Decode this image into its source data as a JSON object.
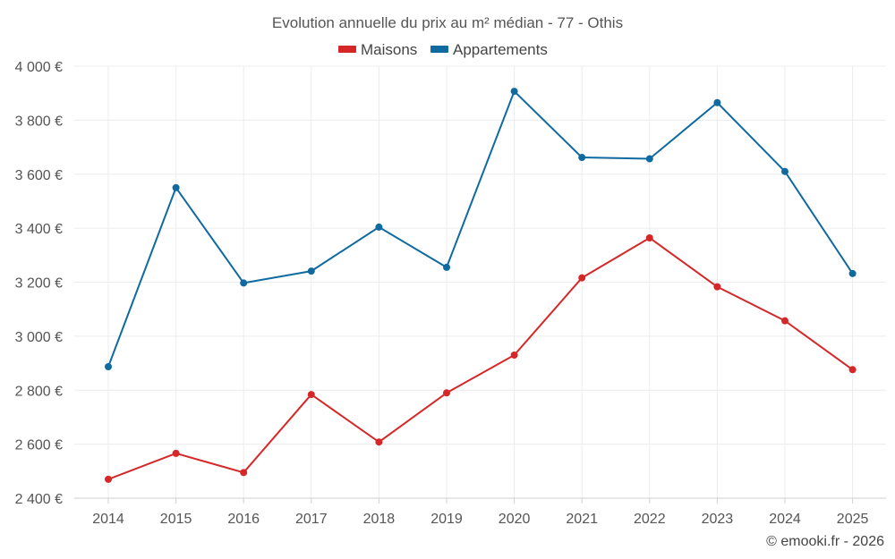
{
  "chart_data": {
    "type": "line",
    "title": "Evolution annuelle du prix au m² médian - 77 - Othis",
    "xlabel": "",
    "ylabel": "",
    "categories": [
      "2014",
      "2015",
      "2016",
      "2017",
      "2018",
      "2019",
      "2020",
      "2021",
      "2022",
      "2023",
      "2024",
      "2025"
    ],
    "series": [
      {
        "name": "Maisons",
        "color": "#d62728",
        "values": [
          2470,
          2566,
          2495,
          2784,
          2608,
          2790,
          2930,
          3216,
          3364,
          3183,
          3057,
          2876
        ]
      },
      {
        "name": "Appartements",
        "color": "#0f6aa0",
        "values": [
          2887,
          3550,
          3197,
          3241,
          3404,
          3255,
          3907,
          3662,
          3657,
          3865,
          3610,
          3232
        ]
      }
    ],
    "ylim": [
      2400,
      4000
    ],
    "yticks": [
      2400,
      2600,
      2800,
      3000,
      3200,
      3400,
      3600,
      3800,
      4000
    ],
    "ytick_labels": [
      "2 400 €",
      "2 600 €",
      "2 800 €",
      "3 000 €",
      "3 200 €",
      "3 400 €",
      "3 600 €",
      "3 800 €",
      "4 000 €"
    ],
    "grid": true,
    "legend_position": "top-center"
  },
  "credit": "© emooki.fr - 2026"
}
